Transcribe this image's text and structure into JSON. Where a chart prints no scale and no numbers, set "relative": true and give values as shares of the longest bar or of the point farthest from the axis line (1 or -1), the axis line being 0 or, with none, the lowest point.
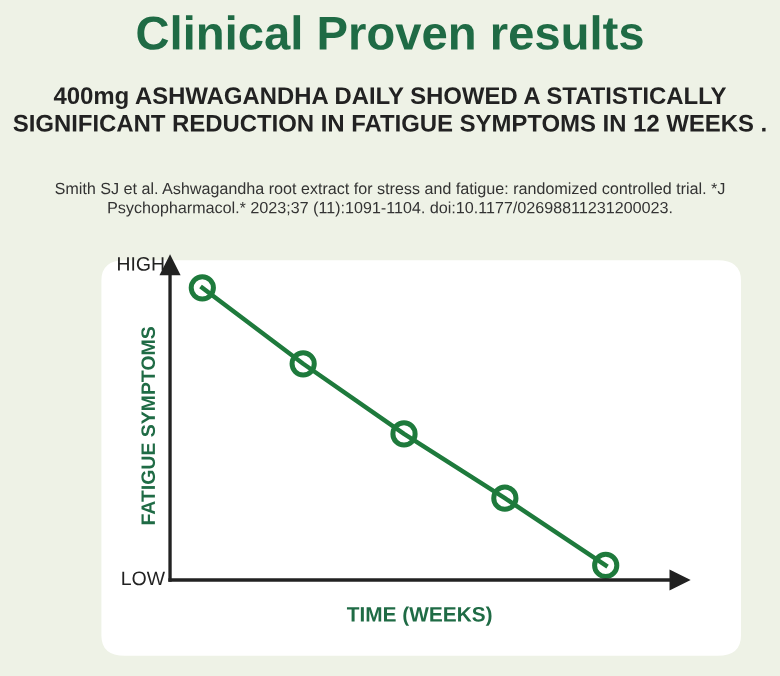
{
  "chart_data": {
    "type": "line",
    "title": "Clinical Proven results",
    "subtitle": "400mg ASHWAGANDHA DAILY SHOWED A STATISTICALLY SIGNIFICANT REDUCTION IN FATIGUE SYMPTOMS IN 12 WEEKS .",
    "xlabel": "TIME (WEEKS)",
    "ylabel": "FATIGUE SYMPTOMS",
    "annotations": [
      "Smith SJ et al. Ashwagandha root extract for stress and fatigue: randomized controlled trial. *J Psychopharmacol.* 2023;37 (11):1091-1104. doi:10.1177/02698811231200023.",
      "HIGH",
      "LOW"
    ],
    "categories": [
      null,
      null,
      null,
      null,
      null
    ],
    "relative": true,
    "marker": "circle",
    "line_style": "solid",
    "series": [
      {
        "color": "#1e7a3c",
        "values": [
          1,
          0.74,
          0.5,
          0.28,
          0.05
        ]
      }
    ]
  }
}
